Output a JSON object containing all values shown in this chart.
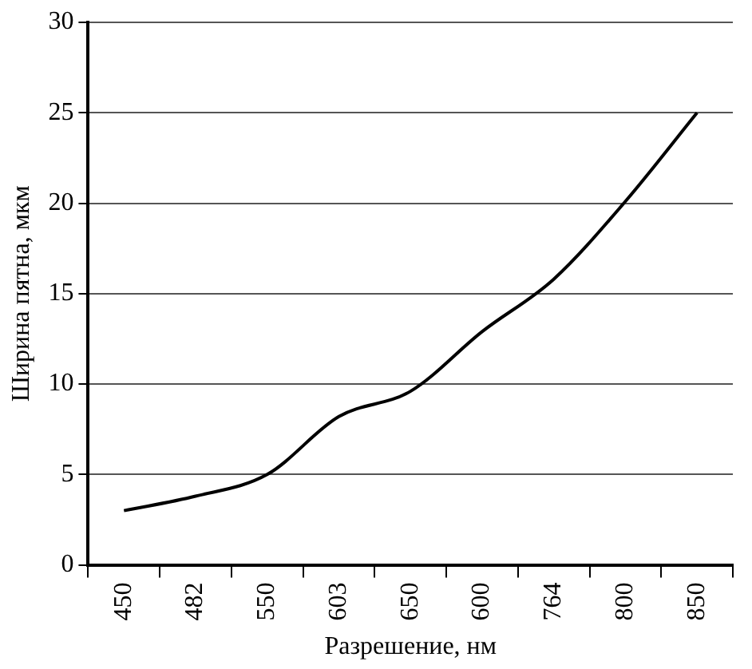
{
  "chart_data": {
    "type": "line",
    "xlabel": "Разрешение, нм",
    "ylabel": "Ширина пятна, мкм",
    "categories": [
      "450",
      "482",
      "550",
      "603",
      "650",
      "600",
      "764",
      "800",
      "850"
    ],
    "series": [
      {
        "color": "#000000",
        "values": [
          3,
          3.8,
          5,
          8.2,
          9.6,
          12.9,
          15.8,
          20.1,
          25
        ]
      }
    ],
    "ylim": [
      0,
      30
    ],
    "yticks": [
      0,
      5,
      10,
      15,
      20,
      25,
      30
    ],
    "grid": "y",
    "legend": false,
    "marker": "none",
    "line_style": "solid"
  }
}
